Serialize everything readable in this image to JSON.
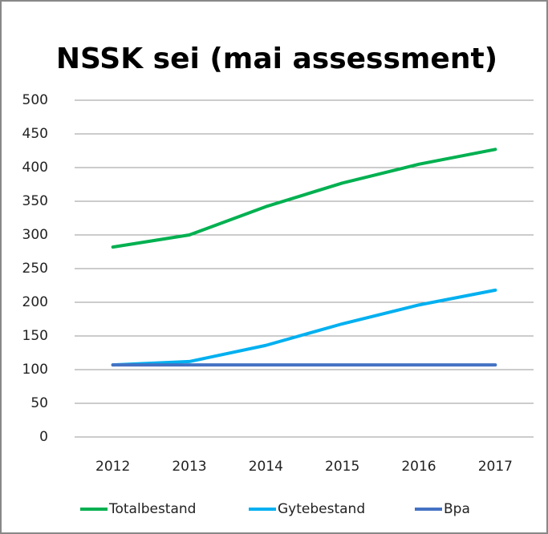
{
  "chart_data": {
    "type": "line",
    "title": "NSSK sei (mai assessment)",
    "categories": [
      "2012",
      "2013",
      "2014",
      "2015",
      "2016",
      "2017"
    ],
    "series": [
      {
        "name": "Totalbestand",
        "color": "#00b050",
        "values": [
          282,
          300,
          342,
          377,
          405,
          427
        ]
      },
      {
        "name": "Gytebestand",
        "color": "#00b0f0",
        "values": [
          107,
          112,
          136,
          168,
          196,
          218
        ]
      },
      {
        "name": "Bpa",
        "color": "#4472c4",
        "values": [
          107,
          107,
          107,
          107,
          107,
          107
        ]
      }
    ],
    "ylim": [
      0,
      500
    ],
    "yticks": [
      0,
      50,
      100,
      150,
      200,
      250,
      300,
      350,
      400,
      450,
      500
    ],
    "grid": true,
    "legend": "bottom"
  }
}
